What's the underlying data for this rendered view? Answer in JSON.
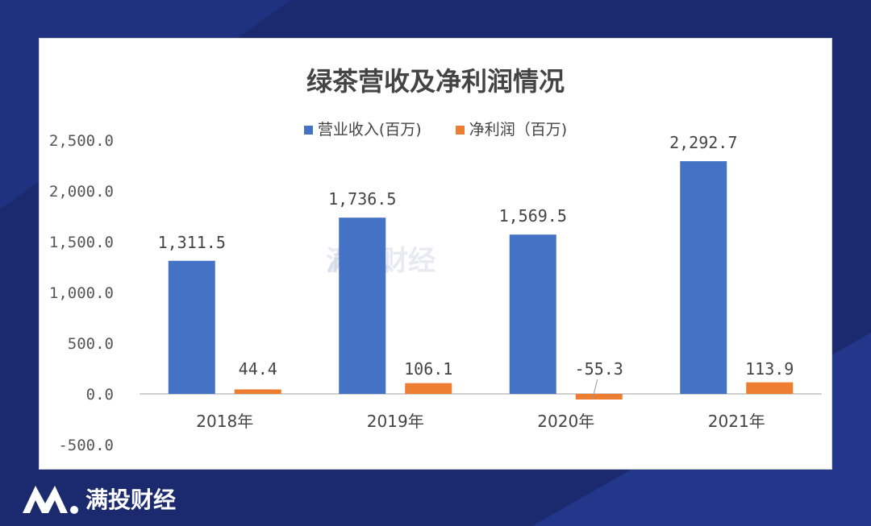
{
  "brand": {
    "name": "满投财经"
  },
  "watermark": {
    "text": "满投财经"
  },
  "chart_data": {
    "type": "bar",
    "title": "绿茶营收及净利润情况",
    "categories": [
      "2018年",
      "2019年",
      "2020年",
      "2021年"
    ],
    "series": [
      {
        "name": "营业收入(百万)",
        "color": "#4472c4",
        "values": [
          1311.5,
          1736.5,
          1569.5,
          2292.7
        ],
        "labels": [
          "1,311.5",
          "1,736.5",
          "1,569.5",
          "2,292.7"
        ]
      },
      {
        "name": "净利润（百万)",
        "color": "#ed7d31",
        "values": [
          44.4,
          106.1,
          -55.3,
          113.9
        ],
        "labels": [
          "44.4",
          "106.1",
          "-55.3",
          "113.9"
        ]
      }
    ],
    "yticks": [
      "-500.0",
      "0.0",
      "500.0",
      "1,000.0",
      "1,500.0",
      "2,000.0",
      "2,500.0"
    ],
    "ylim": [
      -500,
      2500
    ],
    "legend_position": "top",
    "grid": false
  }
}
